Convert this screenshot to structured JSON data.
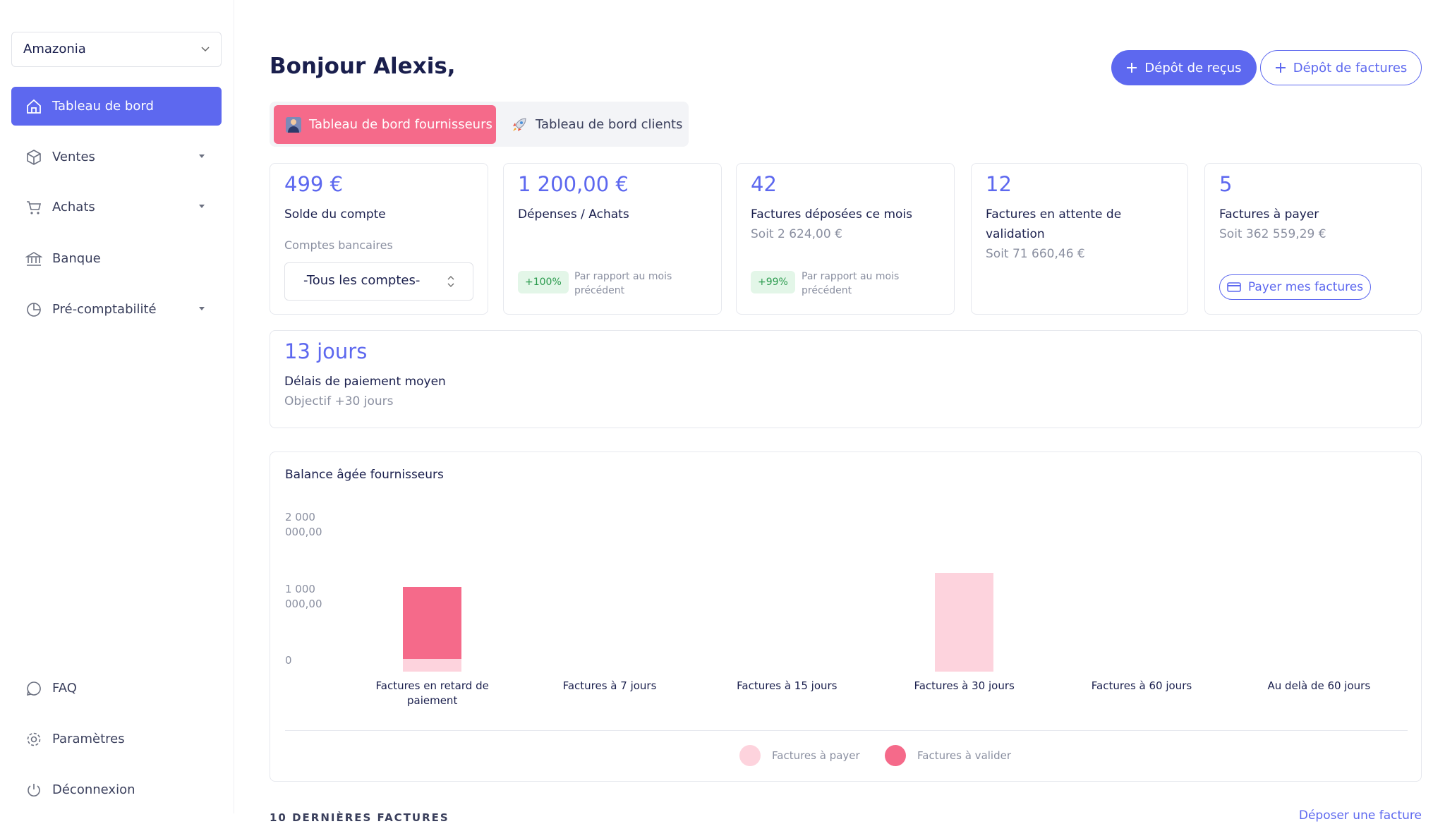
{
  "sidebar": {
    "company": "Amazonia",
    "nav": [
      "Tableau de bord",
      "Ventes",
      "Achats",
      "Banque",
      "Pré-comptabilité"
    ],
    "bottom": [
      "FAQ",
      "Paramètres",
      "Déconnexion"
    ]
  },
  "header": {
    "greeting": "Bonjour Alexis,",
    "buttons": [
      "Dépôt de reçus",
      "Dépôt de factures"
    ]
  },
  "tabs": [
    "Tableau de bord fournisseurs",
    "Tableau de bord clients"
  ],
  "cards": [
    {
      "value": "499 €",
      "label": "Solde du compte",
      "sub": "Comptes bancaires",
      "select": "-Tous les comptes-"
    },
    {
      "value": "1 200,00 €",
      "label": "Dépenses / Achats",
      "badge": "+100%",
      "note": "Par rapport au mois précédent"
    },
    {
      "value": "42",
      "label": "Factures déposées ce mois",
      "sub": "Soit 2 624,00 €",
      "badge": "+99%",
      "note": "Par rapport au mois précédent"
    },
    {
      "value": "12",
      "label": "Factures en attente de validation",
      "sub": "Soit 71 660,46 €"
    },
    {
      "value": "5",
      "label": "Factures à payer",
      "sub": "Soit 362 559,29 €",
      "button": "Payer mes factures"
    }
  ],
  "delay": {
    "value": "13 jours",
    "label": "Délais de paiement moyen",
    "sub": "Objectif +30 jours"
  },
  "chart_data": {
    "type": "bar",
    "title": "Balance âgée fournisseurs",
    "categories": [
      "Factures en retard de paiement",
      "Factures à 7 jours",
      "Factures à 15 jours",
      "Factures à 30 jours",
      "Factures à 60 jours",
      "Au delà de 60 jours"
    ],
    "series": [
      {
        "name": "Factures à payer",
        "color": "#fdd3dd",
        "values": [
          180000,
          0,
          0,
          1380000,
          0,
          0
        ]
      },
      {
        "name": "Factures à valider",
        "color": "#f56a8a",
        "values": [
          1000000,
          0,
          0,
          0,
          0,
          0
        ]
      }
    ],
    "stacked": true,
    "ylim": [
      0,
      2000000
    ],
    "yticks": [
      0,
      {
        "value": 1000000,
        "label": "1 000 000,00"
      },
      {
        "value": 2000000,
        "label": "2 000 000,00"
      }
    ],
    "grid": false
  },
  "footer": {
    "section": "10 DERNIÈRES FACTURES",
    "link": "Déposer une facture"
  }
}
